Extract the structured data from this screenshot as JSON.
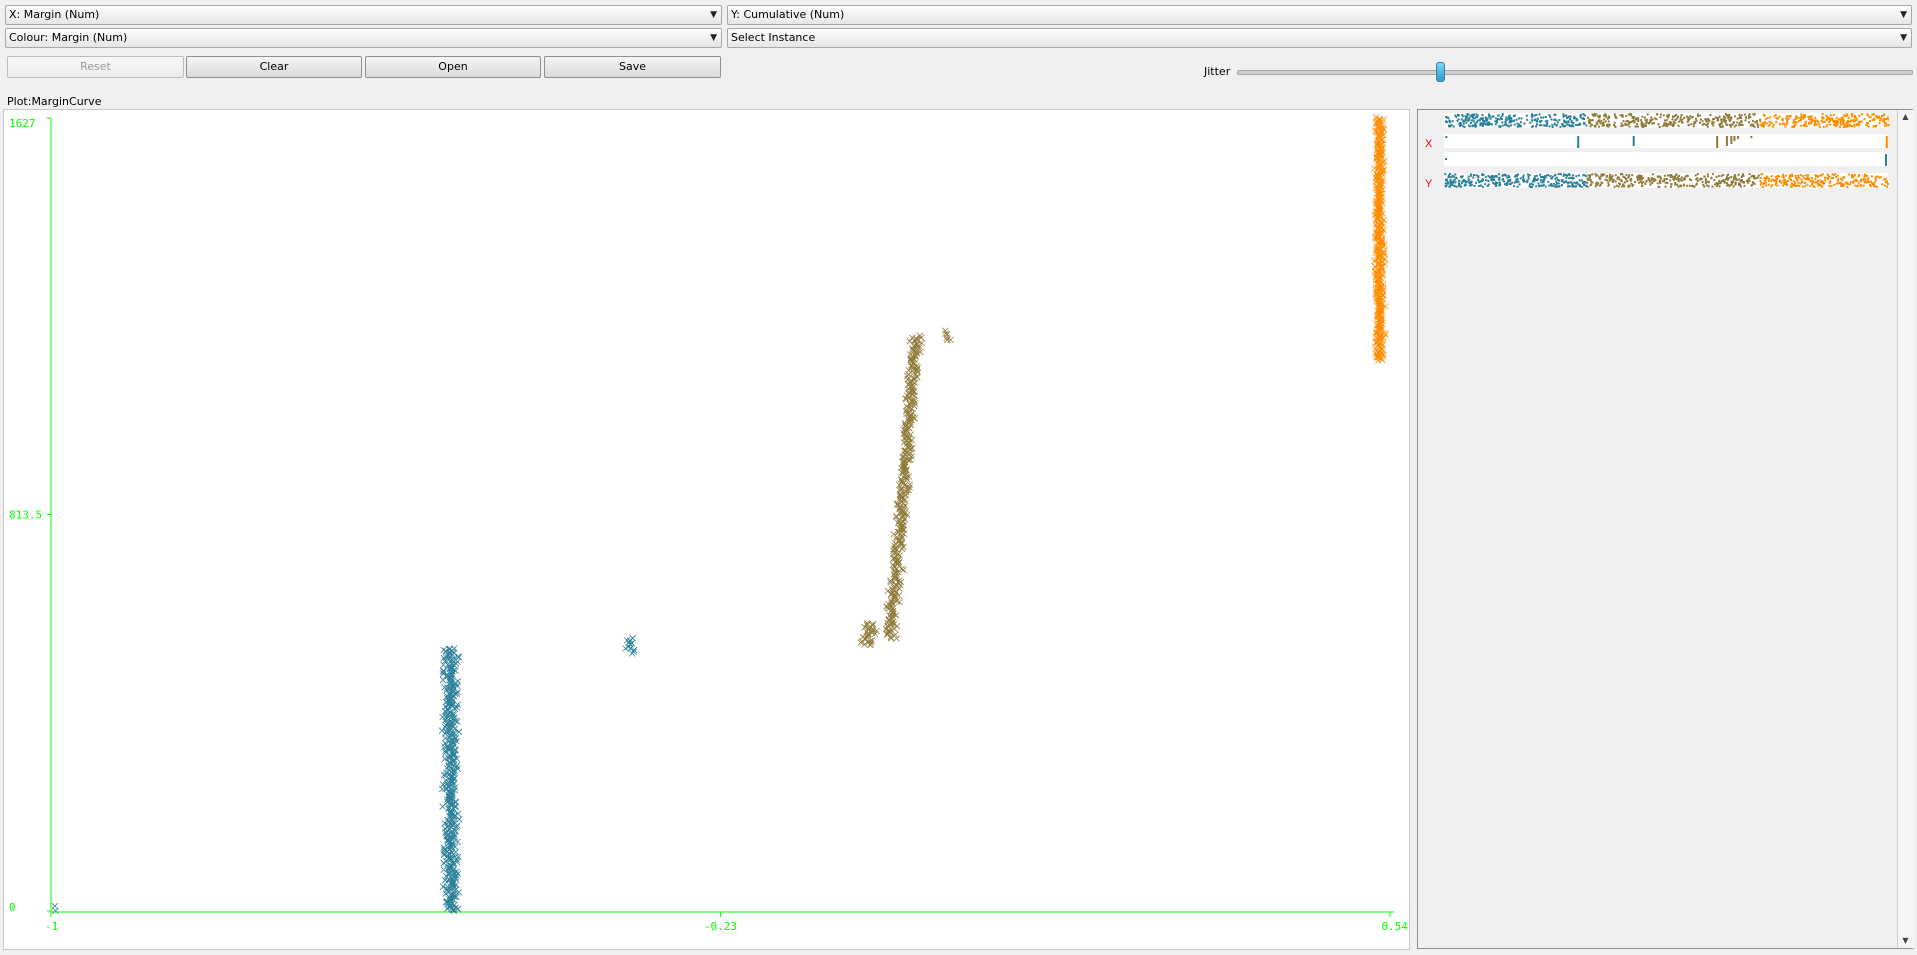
{
  "controls": {
    "x_axis": "X: Margin (Num)",
    "y_axis": "Y: Cumulative (Num)",
    "colour": "Colour: Margin (Num)",
    "instance": "Select Instance",
    "buttons": {
      "reset": "Reset",
      "clear": "Clear",
      "open": "Open",
      "save": "Save"
    },
    "jitter_label": "Jitter",
    "jitter_value": 0.3
  },
  "plot_title": "Plot:MarginCurve",
  "colors": {
    "axis": "#00ff00",
    "low": "#2a7f99",
    "mid": "#8f7a3a",
    "high": "#ff8c00",
    "side_axis_label": "#ff0000"
  },
  "side_panel": {
    "x_label": "X",
    "y_label": "Y"
  },
  "chart_data": {
    "type": "scatter",
    "title": "",
    "xlabel": "",
    "ylabel": "",
    "xlim": [
      -1,
      0.54
    ],
    "ylim": [
      0,
      1627
    ],
    "x_ticks": [
      "-1",
      "-0.23",
      "0.54"
    ],
    "y_ticks": [
      "0",
      "813.5",
      "1627"
    ],
    "marker": "x",
    "clusters": [
      {
        "color_key": "low",
        "x_center": -0.54,
        "x_spread": 0.012,
        "y_range": [
          0,
          540
        ],
        "count": 420
      },
      {
        "color_key": "low",
        "x_center": -0.334,
        "x_spread": 0.012,
        "y_range": [
          528,
          560
        ],
        "count": 12
      },
      {
        "color_key": "low",
        "x_center": -0.995,
        "x_spread": 0.002,
        "y_range": [
          0,
          10
        ],
        "count": 2
      },
      {
        "color_key": "mid",
        "x_center": -0.06,
        "x_spread": 0.012,
        "y_range": [
          545,
          590
        ],
        "count": 30
      },
      {
        "color_key": "mid",
        "x_center": -0.02,
        "x_spread": 0.01,
        "y_range": [
          560,
          1180
        ],
        "count": 360
      },
      {
        "color_key": "mid",
        "x_center": 0.03,
        "x_spread": 0.01,
        "y_range": [
          1170,
          1190
        ],
        "count": 6
      },
      {
        "color_key": "high",
        "x_center": 0.528,
        "x_spread": 0.008,
        "y_range": [
          1130,
          1627
        ],
        "count": 380
      }
    ]
  }
}
